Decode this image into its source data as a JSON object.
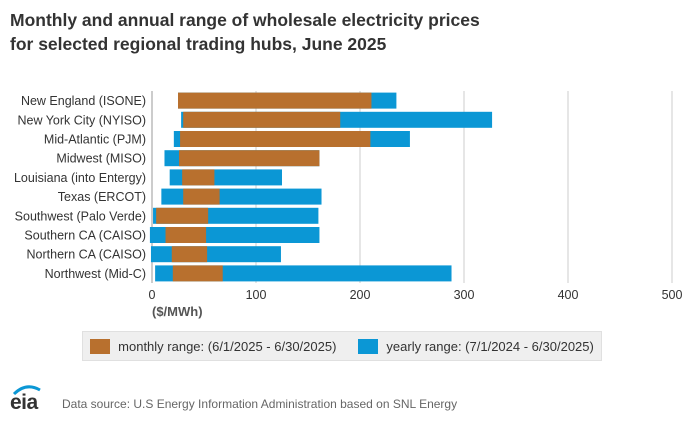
{
  "title": {
    "line1": "Monthly and annual range of wholesale electricity prices",
    "line2": "for selected regional trading hubs, June 2025"
  },
  "chart_data": {
    "type": "bar",
    "orientation": "horizontal",
    "stacked_ranges": true,
    "categories": [
      "New England (ISONE)",
      "New York City (NYISO)",
      "Mid-Atlantic (PJM)",
      "Midwest (MISO)",
      "Louisiana (into Entergy)",
      "Texas (ERCOT)",
      "Southwest (Palo Verde)",
      "Southern CA (CAISO)",
      "Northern CA (CAISO)",
      "Northwest (Mid-C)"
    ],
    "series": [
      {
        "name": "monthly range: (6/1/2025 - 6/30/2025)",
        "color": "#b8702e",
        "ranges": [
          [
            25,
            211
          ],
          [
            30,
            181
          ],
          [
            27,
            210
          ],
          [
            26,
            161
          ],
          [
            29,
            60
          ],
          [
            30,
            65
          ],
          [
            4,
            54
          ],
          [
            13,
            52
          ],
          [
            19,
            53
          ],
          [
            20,
            68
          ]
        ]
      },
      {
        "name": "yearly range: (7/1/2024 - 6/30/2025)",
        "color": "#0b97d5",
        "ranges": [
          [
            25,
            235
          ],
          [
            28,
            327
          ],
          [
            21,
            248
          ],
          [
            12,
            161
          ],
          [
            17,
            125
          ],
          [
            9,
            163
          ],
          [
            1,
            160
          ],
          [
            -2,
            161
          ],
          [
            -1,
            124
          ],
          [
            3,
            288
          ]
        ]
      }
    ],
    "xlim": [
      0,
      500
    ],
    "xticks": [
      "0",
      "100",
      "200",
      "300",
      "400",
      "500"
    ],
    "xlabel": "($/MWh)",
    "grid": "vertical",
    "legend_position": "bottom"
  },
  "legend": {
    "monthly_label": "monthly range: (6/1/2025 - 6/30/2025)",
    "yearly_label": "yearly range: (7/1/2024 - 6/30/2025)"
  },
  "footer": {
    "logo_text": "eia",
    "source": "Data source: U.S Energy Information Administration based on SNL Energy"
  }
}
